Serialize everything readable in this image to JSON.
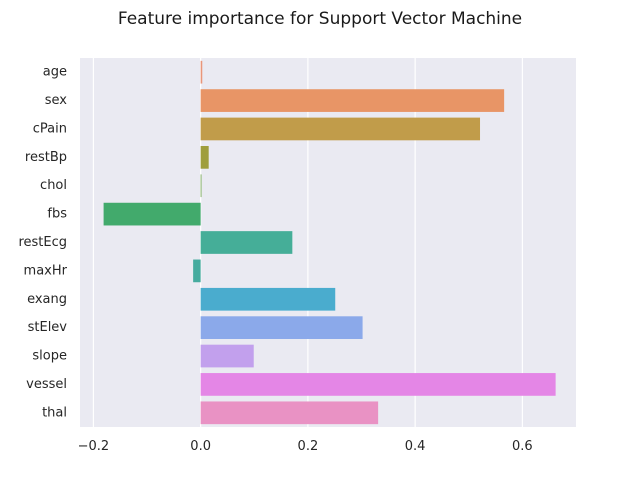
{
  "chart_data": {
    "type": "bar",
    "orientation": "horizontal",
    "title": "Feature importance for Support Vector Machine",
    "xlabel": "",
    "ylabel": "",
    "categories": [
      "age",
      "sex",
      "cPain",
      "restBp",
      "chol",
      "fbs",
      "restEcg",
      "maxHr",
      "exang",
      "stElev",
      "slope",
      "vessel",
      "thal"
    ],
    "values": [
      0.003,
      0.566,
      0.521,
      0.015,
      0.001,
      -0.181,
      0.171,
      -0.014,
      0.251,
      0.302,
      0.099,
      0.662,
      0.331
    ],
    "colors": [
      "#e9967a",
      "#e89566",
      "#c19c4a",
      "#9f9e3c",
      "#72a84b",
      "#42aa6c",
      "#45ae98",
      "#46ab9f",
      "#4aacce",
      "#8ba9ea",
      "#c2a0ed",
      "#e486e6",
      "#e992c4"
    ],
    "xlim": [
      -0.225,
      0.7
    ],
    "xticks": [
      -0.2,
      0.0,
      0.2,
      0.4,
      0.6
    ],
    "xtick_labels": [
      "−0.2",
      "0.0",
      "0.2",
      "0.4",
      "0.6"
    ],
    "grid": true,
    "style": "darkgrid",
    "plot_background": "#eaeaf2"
  }
}
